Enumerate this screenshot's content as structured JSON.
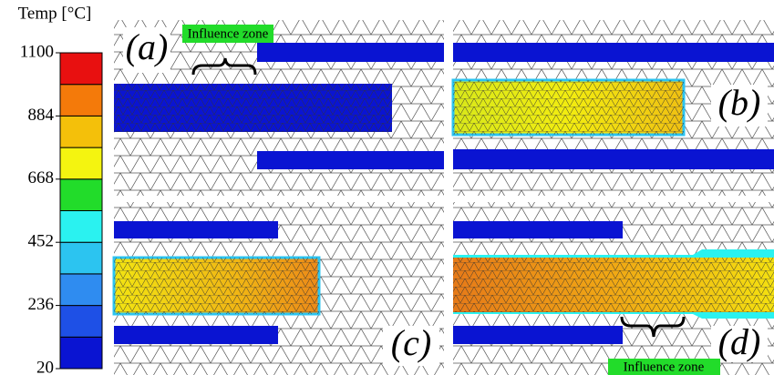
{
  "colorbar": {
    "title": "Temp [°C]",
    "lim": [
      20,
      1100
    ],
    "ticks": [
      20,
      236,
      452,
      668,
      884,
      1100
    ],
    "bounds": [
      20,
      128,
      236,
      344,
      452,
      560,
      668,
      776,
      884,
      992,
      1100
    ],
    "colors": [
      "#0a14d2",
      "#1e50e6",
      "#2f8cf0",
      "#2cc4f0",
      "#2af2f0",
      "#22dc2a",
      "#f4f410",
      "#f4c00a",
      "#f47a0a",
      "#e81010"
    ]
  },
  "panels": [
    {
      "label": "(a)"
    },
    {
      "label": "(b)"
    },
    {
      "label": "(c)"
    },
    {
      "label": "(d)"
    }
  ],
  "annotations": [
    "Influence zone",
    "Influence zone"
  ]
}
